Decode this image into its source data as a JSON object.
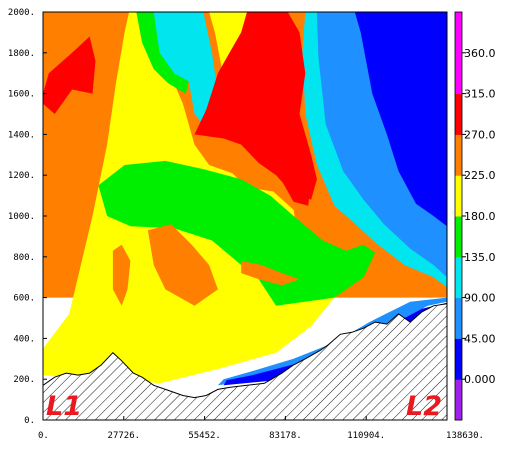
{
  "chart_data": {
    "type": "heatmap",
    "title": "",
    "xlabel": "",
    "ylabel": "",
    "xlim": [
      0,
      138630
    ],
    "ylim": [
      0,
      2000
    ],
    "x_ticks": [
      "0.",
      "27726.",
      "55452.",
      "83178.",
      "110904.",
      "138630."
    ],
    "y_ticks": [
      "0.",
      "200.",
      "400.",
      "600.",
      "800.",
      "1000.",
      "1200.",
      "1400.",
      "1600.",
      "1800.",
      "2000."
    ],
    "colorbar": {
      "levels": [
        -45,
        0,
        45,
        90,
        135,
        180,
        225,
        270,
        315,
        360,
        405
      ],
      "tick_labels": [
        "0.000",
        "45.00",
        "90.00",
        "135.0",
        "180.0",
        "225.0",
        "270.0",
        "315.0",
        "360.0"
      ],
      "colors": [
        "#a020f0",
        "#0000ff",
        "#1e90ff",
        "#00e5ee",
        "#00ee00",
        "#ffff00",
        "#ff7f00",
        "#ff0000",
        "#ff00ff",
        "#ff00ff"
      ]
    },
    "terrain_hatched": true,
    "endpoint_labels": [
      "L1",
      "L2"
    ],
    "regions": [
      {
        "level": 270,
        "color": "#ff7f00",
        "poly": [
          [
            0,
            200
          ],
          [
            0,
            2000
          ],
          [
            138630,
            2000
          ],
          [
            138630,
            600
          ],
          [
            0,
            600
          ]
        ]
      },
      {
        "level": 225,
        "color": "#ffff00",
        "poly": [
          [
            0,
            350
          ],
          [
            9000,
            520
          ],
          [
            17000,
            1000
          ],
          [
            22000,
            1350
          ],
          [
            25000,
            1650
          ],
          [
            28000,
            1900
          ],
          [
            29500,
            2000
          ],
          [
            40000,
            2000
          ],
          [
            42000,
            1750
          ],
          [
            48000,
            1550
          ],
          [
            52000,
            1350
          ],
          [
            57000,
            1250
          ],
          [
            65000,
            1210
          ],
          [
            70000,
            1140
          ],
          [
            79000,
            1120
          ],
          [
            86000,
            1030
          ],
          [
            88000,
            850
          ],
          [
            93000,
            820
          ],
          [
            100000,
            850
          ],
          [
            104000,
            700
          ],
          [
            100000,
            600
          ],
          [
            92000,
            460
          ],
          [
            80000,
            330
          ],
          [
            60000,
            250
          ],
          [
            40000,
            180
          ],
          [
            28000,
            200
          ],
          [
            18000,
            220
          ],
          [
            8000,
            210
          ],
          [
            0,
            220
          ]
        ]
      },
      {
        "level": 225,
        "color": "#ffff00",
        "poly": [
          [
            57000,
            2000
          ],
          [
            59000,
            1900
          ],
          [
            63000,
            1600
          ],
          [
            66000,
            1450
          ],
          [
            70000,
            1500
          ],
          [
            72000,
            1780
          ],
          [
            73000,
            2000
          ]
        ]
      },
      {
        "level": 180,
        "color": "#00ee00",
        "poly": [
          [
            19000,
            1150
          ],
          [
            28000,
            1250
          ],
          [
            42000,
            1270
          ],
          [
            55000,
            1230
          ],
          [
            68000,
            1180
          ],
          [
            78000,
            1100
          ],
          [
            86000,
            1000
          ],
          [
            96000,
            880
          ],
          [
            104000,
            830
          ],
          [
            110000,
            860
          ],
          [
            114000,
            820
          ],
          [
            110000,
            700
          ],
          [
            100000,
            600
          ],
          [
            80000,
            560
          ],
          [
            74000,
            690
          ],
          [
            68000,
            760
          ],
          [
            58000,
            880
          ],
          [
            45000,
            940
          ],
          [
            30000,
            950
          ],
          [
            22000,
            1000
          ]
        ]
      },
      {
        "level": 180,
        "color": "#00ee00",
        "poly": [
          [
            32000,
            2000
          ],
          [
            34000,
            1850
          ],
          [
            38000,
            1720
          ],
          [
            43000,
            1650
          ],
          [
            49000,
            1600
          ],
          [
            51000,
            1720
          ],
          [
            46000,
            1820
          ],
          [
            44000,
            2000
          ]
        ]
      },
      {
        "level": 180,
        "color": "#00ee00",
        "poly": [
          [
            96000,
            2000
          ],
          [
            95000,
            1750
          ],
          [
            98000,
            1350
          ],
          [
            103000,
            1150
          ],
          [
            112000,
            1000
          ],
          [
            118000,
            870
          ],
          [
            124000,
            780
          ],
          [
            130000,
            740
          ],
          [
            138630,
            700
          ],
          [
            138630,
            2000
          ]
        ]
      },
      {
        "level": 135,
        "color": "#00e5ee",
        "poly": [
          [
            90000,
            2000
          ],
          [
            89000,
            1800
          ],
          [
            90000,
            1500
          ],
          [
            94000,
            1250
          ],
          [
            100000,
            1050
          ],
          [
            108000,
            950
          ],
          [
            114000,
            870
          ],
          [
            124000,
            760
          ],
          [
            134000,
            700
          ],
          [
            138630,
            650
          ],
          [
            138630,
            2000
          ]
        ]
      },
      {
        "level": 135,
        "color": "#00e5ee",
        "poly": [
          [
            38000,
            2000
          ],
          [
            40000,
            1800
          ],
          [
            45000,
            1700
          ],
          [
            50000,
            1660
          ],
          [
            52000,
            1500
          ],
          [
            58000,
            1400
          ],
          [
            60000,
            1600
          ],
          [
            58000,
            1800
          ],
          [
            55000,
            2000
          ]
        ]
      },
      {
        "level": 90,
        "color": "#1e90ff",
        "poly": [
          [
            94000,
            2000
          ],
          [
            94500,
            1780
          ],
          [
            97000,
            1450
          ],
          [
            103000,
            1220
          ],
          [
            110000,
            1080
          ],
          [
            117000,
            960
          ],
          [
            126000,
            840
          ],
          [
            134000,
            760
          ],
          [
            138630,
            700
          ],
          [
            138630,
            2000
          ]
        ]
      },
      {
        "level": 90,
        "color": "#1e90ff",
        "poly": [
          [
            60000,
            170
          ],
          [
            80000,
            210
          ],
          [
            96000,
            280
          ],
          [
            108000,
            380
          ],
          [
            120000,
            470
          ],
          [
            132000,
            560
          ],
          [
            138630,
            580
          ],
          [
            138630,
            600
          ],
          [
            126000,
            580
          ],
          [
            112000,
            480
          ],
          [
            100000,
            380
          ],
          [
            86000,
            300
          ],
          [
            72000,
            240
          ],
          [
            62000,
            200
          ]
        ]
      },
      {
        "level": 45,
        "color": "#0000ff",
        "poly": [
          [
            107000,
            2000
          ],
          [
            109000,
            1900
          ],
          [
            113000,
            1600
          ],
          [
            118000,
            1400
          ],
          [
            122000,
            1220
          ],
          [
            128000,
            1060
          ],
          [
            134000,
            1000
          ],
          [
            138630,
            950
          ],
          [
            138630,
            2000
          ]
        ]
      },
      {
        "level": 45,
        "color": "#0000ff",
        "poly": [
          [
            62000,
            170
          ],
          [
            80000,
            195
          ],
          [
            96000,
            260
          ],
          [
            108000,
            330
          ],
          [
            120000,
            420
          ],
          [
            132000,
            530
          ],
          [
            138630,
            570
          ],
          [
            138630,
            575
          ],
          [
            130000,
            545
          ],
          [
            118000,
            455
          ],
          [
            104000,
            350
          ],
          [
            88000,
            280
          ],
          [
            72000,
            220
          ],
          [
            63000,
            195
          ]
        ]
      },
      {
        "level": 315,
        "color": "#ff0000",
        "poly": [
          [
            0,
            1600
          ],
          [
            2000,
            1700
          ],
          [
            10000,
            1800
          ],
          [
            16000,
            1880
          ],
          [
            18000,
            1760
          ],
          [
            17000,
            1600
          ],
          [
            10000,
            1620
          ],
          [
            4000,
            1500
          ],
          [
            0,
            1550
          ]
        ]
      },
      {
        "level": 315,
        "color": "#ff0000",
        "poly": [
          [
            52000,
            1400
          ],
          [
            56000,
            1520
          ],
          [
            60000,
            1700
          ],
          [
            64000,
            1800
          ],
          [
            68000,
            1900
          ],
          [
            70000,
            2000
          ],
          [
            84000,
            2000
          ],
          [
            88000,
            1900
          ],
          [
            90000,
            1700
          ],
          [
            88000,
            1500
          ],
          [
            92000,
            1300
          ],
          [
            94000,
            1180
          ],
          [
            92000,
            1080
          ],
          [
            85000,
            1120
          ],
          [
            80000,
            1200
          ],
          [
            74000,
            1260
          ],
          [
            68000,
            1350
          ],
          [
            62000,
            1380
          ]
        ]
      },
      {
        "level": 315,
        "color": "#ff0000",
        "poly": [
          [
            78000,
            1260
          ],
          [
            82000,
            1170
          ],
          [
            86000,
            1070
          ],
          [
            91000,
            1050
          ],
          [
            92000,
            1180
          ],
          [
            89000,
            1260
          ],
          [
            84000,
            1300
          ]
        ]
      },
      {
        "level": 270,
        "color": "#ff7f00",
        "poly": [
          [
            36000,
            930
          ],
          [
            44000,
            960
          ],
          [
            51000,
            860
          ],
          [
            57000,
            760
          ],
          [
            60000,
            640
          ],
          [
            52000,
            560
          ],
          [
            42000,
            640
          ],
          [
            38000,
            760
          ]
        ]
      },
      {
        "level": 270,
        "color": "#ff7f00",
        "poly": [
          [
            24000,
            830
          ],
          [
            27000,
            860
          ],
          [
            30000,
            780
          ],
          [
            29000,
            640
          ],
          [
            27000,
            560
          ],
          [
            24000,
            640
          ]
        ]
      },
      {
        "level": 270,
        "color": "#ff7f00",
        "poly": [
          [
            0,
            1100
          ],
          [
            4000,
            1200
          ],
          [
            7000,
            1300
          ],
          [
            10000,
            1220
          ],
          [
            9000,
            1100
          ],
          [
            4000,
            1060
          ]
        ]
      },
      {
        "level": 270,
        "color": "#ff7f00",
        "poly": [
          [
            68000,
            780
          ],
          [
            75000,
            760
          ],
          [
            82000,
            720
          ],
          [
            88000,
            690
          ],
          [
            82000,
            660
          ],
          [
            74000,
            690
          ],
          [
            68000,
            720
          ]
        ]
      }
    ],
    "terrain": [
      [
        0,
        170
      ],
      [
        4000,
        210
      ],
      [
        8000,
        230
      ],
      [
        12000,
        220
      ],
      [
        16000,
        230
      ],
      [
        20000,
        270
      ],
      [
        24000,
        330
      ],
      [
        27000,
        290
      ],
      [
        31000,
        230
      ],
      [
        34000,
        210
      ],
      [
        38000,
        170
      ],
      [
        42000,
        150
      ],
      [
        48000,
        120
      ],
      [
        52000,
        110
      ],
      [
        56000,
        120
      ],
      [
        60000,
        150
      ],
      [
        64000,
        160
      ],
      [
        70000,
        170
      ],
      [
        76000,
        180
      ],
      [
        82000,
        230
      ],
      [
        86000,
        270
      ],
      [
        90000,
        300
      ],
      [
        95000,
        340
      ],
      [
        98000,
        370
      ],
      [
        102000,
        420
      ],
      [
        106000,
        430
      ],
      [
        110000,
        450
      ],
      [
        114000,
        480
      ],
      [
        118000,
        470
      ],
      [
        122000,
        520
      ],
      [
        126000,
        480
      ],
      [
        130000,
        530
      ],
      [
        134000,
        560
      ],
      [
        138630,
        570
      ]
    ]
  }
}
